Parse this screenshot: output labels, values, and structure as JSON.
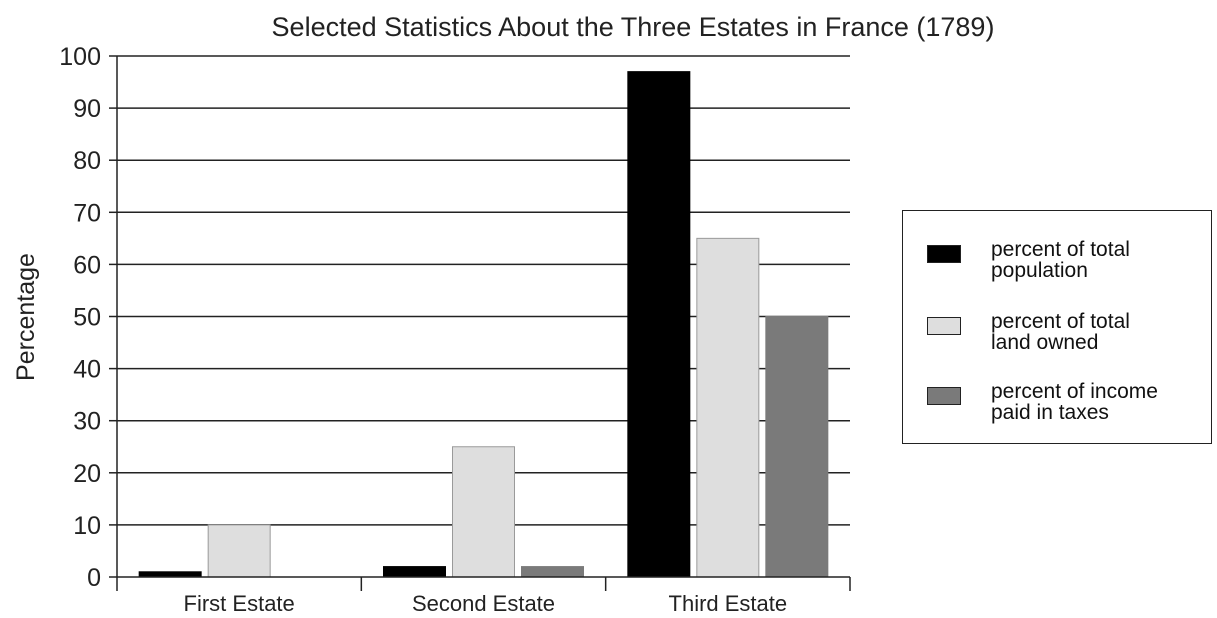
{
  "chart_data": {
    "type": "bar",
    "title": "Selected Statistics About the Three Estates in France (1789)",
    "xlabel": "",
    "ylabel": "Percentage",
    "ylim": [
      0,
      100
    ],
    "yticks": [
      0,
      10,
      20,
      30,
      40,
      50,
      60,
      70,
      80,
      90,
      100
    ],
    "grid": true,
    "legend_position": "right",
    "categories": [
      "First Estate",
      "Second Estate",
      "Third Estate"
    ],
    "series": [
      {
        "name": "percent of total population",
        "color": "#000000",
        "values": [
          1,
          2,
          97
        ]
      },
      {
        "name": "percent of total land owned",
        "color": "#dedede",
        "values": [
          10,
          25,
          65
        ]
      },
      {
        "name": "percent of income paid in taxes",
        "color": "#7a7a7a",
        "values": [
          0,
          2,
          50
        ]
      }
    ],
    "legend": [
      {
        "line1": "percent of total",
        "line2": "population"
      },
      {
        "line1": "percent of total",
        "line2": "land owned"
      },
      {
        "line1": "percent of income",
        "line2": "paid in taxes"
      }
    ]
  }
}
